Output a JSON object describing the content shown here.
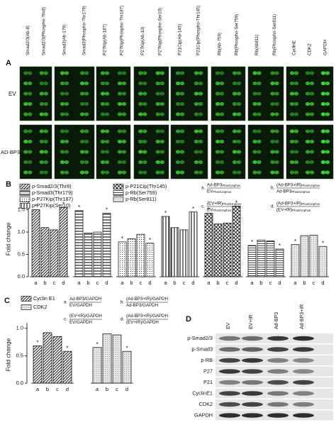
{
  "panel_a": {
    "label": "A",
    "columns": [
      "Smad2/3(Ab-8)",
      "Smad2/3(Phospho-Thr8)",
      "Smad3(Ab-179)",
      "Smad3(Phospho-Thr179)",
      "P27Kip(Ab-187)",
      "P27Kip(Phospho-Thr187)",
      "P27Kip(Ab-10)",
      "P27Kip(Phospho-Ser10)",
      "P21Cip(Ab-145)",
      "P21Cip(Phospho-Thr145)",
      "Rb(Ab-759)",
      "Rb(Phospho-Ser759)",
      "Rb(Ab811)",
      "Rb(Phospho-Ser811)",
      "CyclinE",
      "CDK2",
      "GAPDH"
    ],
    "rows": [
      "EV",
      "AD-BP3"
    ]
  },
  "chart_data": [
    {
      "type": "bar",
      "label": "B",
      "y_label": "Fold change",
      "categories": [
        "a",
        "b",
        "c",
        "d"
      ],
      "series": [
        {
          "name": "p-Smad2/3(Thr8)",
          "color": "#222222",
          "pattern": "diagonal",
          "values": [
            1.5,
            1.1,
            1.05,
            1.55
          ],
          "significance": [
            "*",
            null,
            null,
            "*"
          ]
        },
        {
          "name": "p-Smad3(Thr179)",
          "color": "#555555",
          "pattern": "horizontal",
          "values": [
            1.48,
            0.98,
            1.0,
            1.42
          ],
          "significance": [
            "*",
            null,
            null,
            "*"
          ]
        },
        {
          "name": "p-P27Kip(Thr187)",
          "color": "#333333",
          "pattern": "dots",
          "values": [
            0.78,
            0.85,
            0.95,
            0.75
          ],
          "significance": [
            "*",
            null,
            null,
            "*"
          ]
        },
        {
          "name": "p-P27Kip(Ser10)",
          "color": "#222222",
          "pattern": "vertical",
          "values": [
            1.35,
            1.1,
            1.05,
            1.45
          ],
          "significance": [
            "*",
            null,
            null,
            "*"
          ]
        },
        {
          "name": "p-P21Cip(Thr145)",
          "color": "#111111",
          "pattern": "crosshatch",
          "values": [
            1.42,
            1.18,
            1.2,
            1.58
          ],
          "significance": [
            "*",
            null,
            null,
            "*"
          ]
        },
        {
          "name": "p-Rb(Ser759)",
          "color": "#444444",
          "pattern": "hlines",
          "values": [
            0.7,
            0.82,
            0.8,
            0.62
          ],
          "significance": [
            "*",
            null,
            null,
            "*"
          ]
        },
        {
          "name": "p-Rb(Ser811)",
          "color": "#999999",
          "pattern": "light",
          "values": [
            0.72,
            0.92,
            0.93,
            0.68
          ],
          "significance": [
            "*",
            null,
            null,
            "*"
          ]
        }
      ],
      "ylim": [
        0,
        1.7
      ],
      "yticks": [
        {
          "value": 0,
          "label": "0.0"
        },
        {
          "value": 0.5,
          "label": "0.5"
        },
        {
          "value": 1,
          "label": "1.0"
        },
        {
          "value": 1.5,
          "label": "1.5"
        }
      ],
      "definitions": [
        {
          "letter": "a.",
          "numerator": {
            "text": "Ad-BP3",
            "sub": "Phos/Unphos"
          },
          "denominator": {
            "text": "EV",
            "sub": "Phos/Unphos"
          }
        },
        {
          "letter": "b.",
          "numerator": {
            "text": "(Ad-BP3+IR)",
            "sub": "Phos/Unphos"
          },
          "denominator": {
            "text": "Ad-BP3",
            "sub": "Phos/Unphos"
          }
        },
        {
          "letter": "c.",
          "numerator": {
            "text": "(EV+IR)",
            "sub": "Phos/Unphos"
          },
          "denominator": {
            "text": "EV",
            "sub": "Phos/Unphos"
          }
        },
        {
          "letter": "d.",
          "numerator": {
            "text": "(Ad-BP3+IR)",
            "sub": "Phos/Unphos"
          },
          "denominator": {
            "text": "(EV+IR)",
            "sub": "Phos/Unphos"
          }
        }
      ]
    },
    {
      "type": "bar",
      "label": "C",
      "y_label": "Fold change",
      "categories": [
        "a",
        "b",
        "c",
        "d"
      ],
      "series": [
        {
          "name": "Cyclin E1",
          "color": "#222222",
          "pattern": "diagonal",
          "values": [
            0.68,
            0.92,
            0.85,
            0.58
          ],
          "significance": [
            "*",
            null,
            null,
            "*"
          ]
        },
        {
          "name": "CDK2",
          "color": "#888888",
          "pattern": "light",
          "values": [
            0.65,
            0.9,
            0.88,
            0.58
          ],
          "significance": [
            "*",
            null,
            null,
            "*"
          ]
        }
      ],
      "ylim": [
        0,
        1.1
      ],
      "yticks": [
        {
          "value": 0,
          "label": "0.0"
        },
        {
          "value": 0.5,
          "label": "0.5"
        },
        {
          "value": 1,
          "label": "1.0"
        }
      ],
      "definitions": [
        {
          "letter": "a.",
          "numerator": "Ad-BP3/GAPDH",
          "denominator": "EV/GAPDH"
        },
        {
          "letter": "b.",
          "numerator": "(Ad-BP3+IR)/GAPDH",
          "denominator": "Ad-BP3/GAPDH"
        },
        {
          "letter": "c.",
          "numerator": "(EV+IR)/GAPDH",
          "denominator": "EV/GAPDH"
        },
        {
          "letter": "d.",
          "numerator": "(Ad-BP3+IR)/GAPDH",
          "denominator": "(EV+IR)/GAPDH"
        }
      ]
    }
  ],
  "panel_d": {
    "label": "D",
    "columns": [
      "EV",
      "EV+IR",
      "Ad-BP3",
      "Ad-BP3+IR"
    ],
    "rows": [
      "p-Smad2/3",
      "p-Smad3",
      "p-RB",
      "P27",
      "P21",
      "CyclinE1",
      "CDK2",
      "GAPDH"
    ]
  }
}
